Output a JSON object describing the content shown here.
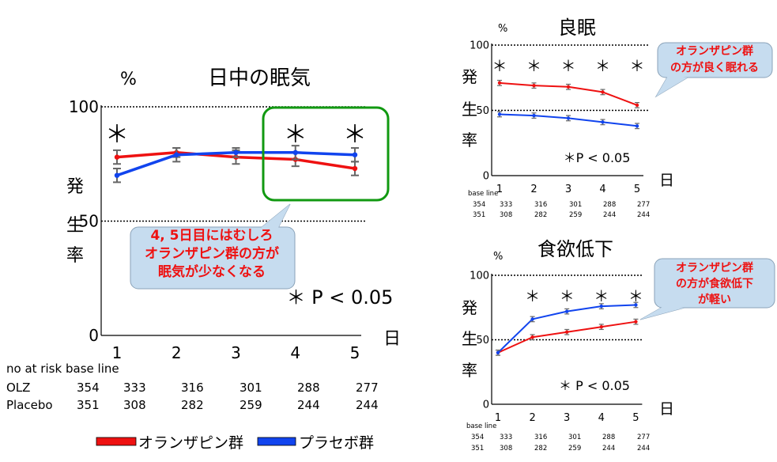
{
  "panels": [
    {
      "id": "main",
      "title": "日中の眠気",
      "unit": "%",
      "ylabel_chars": [
        "発",
        "生",
        "率"
      ],
      "xunit": "日",
      "yticks": [
        0,
        50,
        100
      ],
      "significance_note": "＊ P < 0.05",
      "callout": [
        "4, 5日目にはむしろ",
        "オランザピン群の方が",
        "眠気が少なくなる"
      ],
      "table": {
        "header": [
          "no at risk",
          "base line"
        ],
        "rows": [
          {
            "label": "OLZ",
            "values": [
              "354",
              "333",
              "316",
              "301",
              "288",
              "277"
            ]
          },
          {
            "label": "Placebo",
            "values": [
              "351",
              "308",
              "282",
              "259",
              "244",
              "244"
            ]
          }
        ]
      }
    },
    {
      "id": "sleep",
      "title": "良眠",
      "unit": "%",
      "ylabel_chars": [
        "発",
        "生",
        "率"
      ],
      "xunit": "日",
      "yticks": [
        0,
        50,
        100
      ],
      "significance_note": "＊P < 0.05",
      "callout": [
        "オランザピン群",
        "の方が良く眠れる"
      ],
      "table": {
        "header": [
          "base line"
        ],
        "rows": [
          {
            "values": [
              "354",
              "333",
              "316",
              "301",
              "288",
              "277"
            ]
          },
          {
            "values": [
              "351",
              "308",
              "282",
              "259",
              "244",
              "244"
            ]
          }
        ]
      }
    },
    {
      "id": "appetite",
      "title": "食欲低下",
      "unit": "%",
      "ylabel_chars": [
        "発",
        "生",
        "率"
      ],
      "xunit": "日",
      "yticks": [
        0,
        50,
        100
      ],
      "significance_note": "＊ P < 0.05",
      "callout": [
        "オランザピン群",
        "の方が食欲低下",
        "が軽い"
      ],
      "table": {
        "header": [
          "base line"
        ],
        "rows": [
          {
            "values": [
              "354",
              "333",
              "316",
              "301",
              "288",
              "277"
            ]
          },
          {
            "values": [
              "351",
              "308",
              "282",
              "259",
              "244",
              "244"
            ]
          }
        ]
      }
    }
  ],
  "legend": {
    "olz": "オランザピン群",
    "placebo": "プラセボ群"
  },
  "colors": {
    "olz": "#ee1111",
    "placebo": "#1144ee",
    "callout_text": "#ee1111",
    "box": "#119911",
    "errorbar": "#666666"
  },
  "chart_data": [
    {
      "type": "line",
      "title": "日中の眠気",
      "ylabel": "発生率 (%)",
      "xlabel": "日",
      "x": [
        1,
        2,
        3,
        4,
        5
      ],
      "ylim": [
        0,
        100
      ],
      "series": [
        {
          "name": "オランザピン群",
          "values": [
            78,
            80,
            78,
            77,
            73
          ],
          "err": [
            3,
            2,
            3,
            3,
            3
          ]
        },
        {
          "name": "プラセボ群",
          "values": [
            70,
            79,
            80,
            80,
            79
          ],
          "err": [
            3,
            3,
            2,
            3,
            3
          ]
        }
      ],
      "significant_days": [
        1,
        4,
        5
      ]
    },
    {
      "type": "line",
      "title": "良眠",
      "ylabel": "発生率 (%)",
      "xlabel": "日",
      "x": [
        1,
        2,
        3,
        4,
        5
      ],
      "ylim": [
        0,
        100
      ],
      "series": [
        {
          "name": "オランザピン群",
          "values": [
            71,
            69,
            68,
            64,
            54
          ],
          "err": [
            2,
            2,
            2,
            2,
            2
          ]
        },
        {
          "name": "プラセボ群",
          "values": [
            47,
            46,
            44,
            41,
            38
          ],
          "err": [
            2,
            2,
            2,
            2,
            2
          ]
        }
      ],
      "significant_days": [
        1,
        2,
        3,
        4,
        5
      ]
    },
    {
      "type": "line",
      "title": "食欲低下",
      "ylabel": "発生率 (%)",
      "xlabel": "日",
      "x": [
        1,
        2,
        3,
        4,
        5
      ],
      "ylim": [
        0,
        100
      ],
      "series": [
        {
          "name": "オランザピン群",
          "values": [
            40,
            52,
            56,
            60,
            64
          ],
          "err": [
            2,
            2,
            2,
            2,
            2
          ]
        },
        {
          "name": "プラセボ群",
          "values": [
            40,
            66,
            72,
            76,
            77
          ],
          "err": [
            2,
            2,
            2,
            2,
            2
          ]
        }
      ],
      "significant_days": [
        2,
        3,
        4,
        5
      ]
    }
  ]
}
